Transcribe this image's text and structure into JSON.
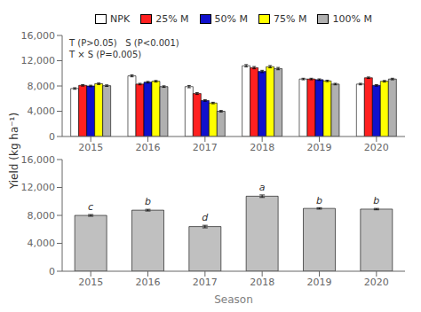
{
  "chart_data": [
    {
      "type": "bar",
      "categories": [
        "2015",
        "2016",
        "2017",
        "2018",
        "2019",
        "2020"
      ],
      "series": [
        {
          "name": "NPK",
          "color": "#ffffff",
          "values": [
            7600,
            9600,
            7900,
            11200,
            9100,
            8300
          ],
          "errors": [
            120,
            150,
            180,
            180,
            120,
            120
          ]
        },
        {
          "name": "25% M",
          "color": "#ff2020",
          "values": [
            8100,
            8300,
            6800,
            10900,
            9100,
            9300
          ],
          "errors": [
            120,
            120,
            150,
            180,
            120,
            120
          ]
        },
        {
          "name": "50% M",
          "color": "#1010cc",
          "values": [
            8000,
            8600,
            5700,
            10300,
            9000,
            8100
          ],
          "errors": [
            120,
            120,
            120,
            180,
            120,
            120
          ]
        },
        {
          "name": "75% M",
          "color": "#ffff00",
          "values": [
            8350,
            8750,
            5300,
            11050,
            8800,
            8750
          ],
          "errors": [
            120,
            120,
            120,
            180,
            120,
            120
          ]
        },
        {
          "name": "100% M",
          "color": "#b0b0b0",
          "values": [
            8050,
            7900,
            4000,
            10750,
            8300,
            9100
          ],
          "errors": [
            120,
            120,
            120,
            180,
            120,
            120
          ]
        }
      ],
      "ylabel": "Yield (kg ha⁻¹)",
      "ylim": [
        0,
        16000
      ],
      "yticks": [
        0,
        {
          "value": 4000,
          "label": "4,000"
        },
        {
          "value": 8000,
          "label": "8,000"
        },
        {
          "value": 12000,
          "label": "12,000"
        },
        {
          "value": 16000,
          "label": "16,000"
        }
      ],
      "annotation": "T (P>0.05)   S (P<0.001)\nT × S (P=0.005)",
      "legend": "top",
      "grid": false
    },
    {
      "type": "bar",
      "categories": [
        "2015",
        "2016",
        "2017",
        "2018",
        "2019",
        "2020"
      ],
      "values": [
        8000,
        8750,
        6400,
        10750,
        9000,
        8900
      ],
      "errors": [
        120,
        120,
        180,
        180,
        100,
        100
      ],
      "letters": [
        "c",
        "b",
        "d",
        "a",
        "b",
        "b"
      ],
      "color": "#c0c0c0",
      "xlabel": "Season",
      "ylim": [
        0,
        16000
      ],
      "yticks": [
        0,
        {
          "value": 4000,
          "label": "4,000"
        },
        {
          "value": 8000,
          "label": "8,000"
        },
        {
          "value": 12000,
          "label": "12,000"
        },
        {
          "value": 16000,
          "label": "16,000"
        }
      ],
      "grid": false
    }
  ]
}
